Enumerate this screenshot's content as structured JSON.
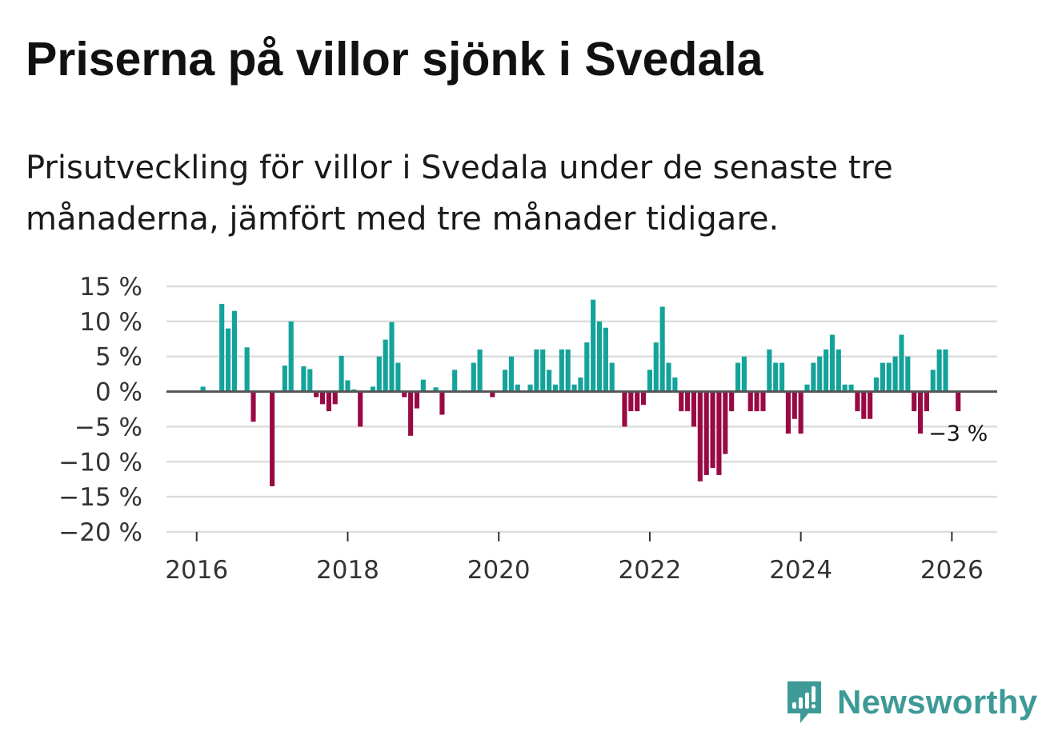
{
  "title": "Priserna på villor sjönk i Svedala",
  "subtitle": "Prisutveckling för villor i Svedala under de senaste tre månaderna, jämfört med tre månader tidigare.",
  "brand": {
    "name": "Newsworthy",
    "icon": "newsworthy-logo-icon"
  },
  "colors": {
    "positive": "#14a39b",
    "negative": "#990a45",
    "zero_line": "#555555",
    "grid": "#dddddd"
  },
  "chart_data": {
    "type": "bar",
    "title": "Priserna på villor sjönk i Svedala",
    "xlabel": "",
    "ylabel": "",
    "unit": "%",
    "ylim": [
      -20,
      15
    ],
    "yticks": [
      15,
      10,
      5,
      0,
      -5,
      -10,
      -15,
      -20
    ],
    "ytick_labels": [
      "15 %",
      "10 %",
      "5 %",
      "0 %",
      "−5 %",
      "−10 %",
      "−15 %",
      "−20 %"
    ],
    "xlim": [
      2015.6,
      2026.6
    ],
    "xticks": [
      2016,
      2018,
      2020,
      2022,
      2024,
      2026
    ],
    "xtick_labels": [
      "2016",
      "2018",
      "2020",
      "2022",
      "2024",
      "2026"
    ],
    "grid": true,
    "start": "2016-01",
    "frequency": "monthly",
    "values": [
      0,
      0.7,
      0,
      0,
      12.5,
      9,
      11.5,
      0,
      6.3,
      -4.3,
      0,
      0,
      -13.5,
      0,
      3.7,
      10,
      0,
      3.6,
      3.2,
      -0.8,
      -1.8,
      -2.8,
      -1.8,
      5.1,
      1.6,
      0.3,
      -5,
      0,
      0.7,
      5,
      7.4,
      9.9,
      4.1,
      -0.8,
      -6.3,
      -2.4,
      1.7,
      0,
      0.6,
      -3.3,
      0,
      3.1,
      0,
      0,
      4.1,
      6,
      0,
      -0.8,
      0,
      3.1,
      5,
      1,
      0,
      1,
      6,
      6,
      3.1,
      1,
      6,
      6,
      1,
      2,
      7,
      13.1,
      10,
      9.1,
      4.1,
      0,
      -5,
      -2.8,
      -2.8,
      -1.9,
      3.1,
      7,
      12.1,
      4.1,
      2,
      -2.8,
      -2.8,
      -5,
      -12.8,
      -11.9,
      -10.9,
      -11.9,
      -8.9,
      -2.8,
      4.1,
      5,
      -2.8,
      -2.8,
      -2.8,
      6,
      4.1,
      4.1,
      -6,
      -3.9,
      -6,
      1,
      4.1,
      5,
      6,
      8.1,
      6,
      1,
      1,
      -2.8,
      -3.9,
      -3.9,
      2,
      4.1,
      4.1,
      5,
      8.1,
      5,
      -2.8,
      -6,
      -2.8,
      3.1,
      6,
      6,
      0,
      -2.8
    ],
    "annotations": [
      {
        "text": "−3 %",
        "target": "last-bar"
      }
    ]
  }
}
